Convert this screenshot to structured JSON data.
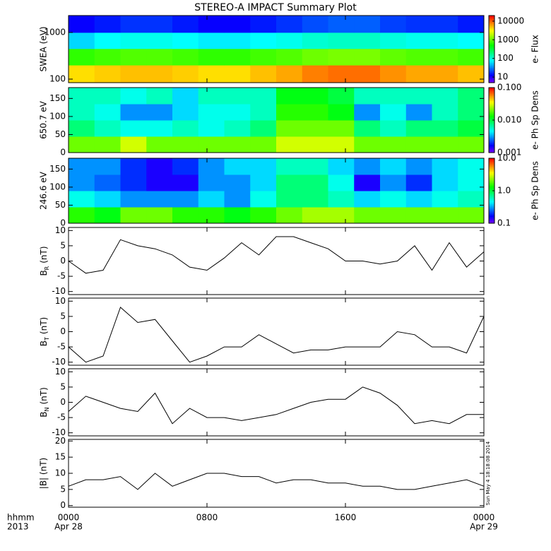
{
  "title": "STEREO-A IMPACT Summary Plot",
  "timestamp": "Sun May  4 18:18:08 2014",
  "x_axis": {
    "xlim": [
      0,
      24
    ],
    "xticks": [
      {
        "value": 0,
        "label": "0000"
      },
      {
        "value": 8,
        "label": "0800"
      },
      {
        "value": 16,
        "label": "1600"
      },
      {
        "value": 24,
        "label": "0000"
      }
    ],
    "date_labels": [
      {
        "value": 0,
        "label": "Apr 28"
      },
      {
        "value": 24,
        "label": "Apr 29"
      }
    ],
    "unit_label": "hhmm",
    "year_label": "2013"
  },
  "chart_data": [
    {
      "type": "heatmap",
      "ylabel": "SWEA (eV)",
      "ylog": true,
      "ylim": [
        84,
        2300
      ],
      "yticks": [
        100,
        1000
      ],
      "x": [
        0,
        1.5,
        3,
        4.5,
        6,
        7.5,
        9,
        10.5,
        12,
        13.5,
        15,
        16.5,
        18,
        19.5,
        21,
        22.5
      ],
      "y_edges": [
        84,
        200,
        450,
        1000,
        2300
      ],
      "values": [
        [
          4000,
          4500,
          5000,
          5000,
          4500,
          4000,
          4000,
          5000,
          6000,
          8000,
          9000,
          9000,
          7000,
          6000,
          6000,
          5000
        ],
        [
          700,
          800,
          900,
          900,
          800,
          700,
          700,
          800,
          900,
          1100,
          1200,
          1200,
          1000,
          900,
          900,
          800
        ],
        [
          60,
          80,
          90,
          90,
          80,
          70,
          70,
          80,
          90,
          110,
          120,
          120,
          100,
          90,
          90,
          80
        ],
        [
          12,
          15,
          18,
          18,
          15,
          12,
          12,
          15,
          18,
          22,
          25,
          25,
          20,
          18,
          18,
          15
        ]
      ],
      "colorbar": {
        "label": "e- Flux",
        "log": true,
        "lim": [
          5,
          20000
        ],
        "ticks": [
          10,
          100,
          1000,
          10000
        ]
      }
    },
    {
      "type": "heatmap",
      "ylabel": "650.7 eV",
      "ylog": false,
      "ylim": [
        0,
        180
      ],
      "yticks": [
        0,
        50,
        100,
        150
      ],
      "x": [
        0,
        1.5,
        3,
        4.5,
        6,
        7.5,
        9,
        10.5,
        12,
        13.5,
        15,
        16.5,
        18,
        19.5,
        21,
        22.5
      ],
      "y_edges": [
        0,
        45,
        90,
        135,
        180
      ],
      "values": [
        [
          0.02,
          0.02,
          0.03,
          0.02,
          0.02,
          0.02,
          0.02,
          0.02,
          0.03,
          0.03,
          0.03,
          0.02,
          0.02,
          0.02,
          0.02,
          0.02
        ],
        [
          0.008,
          0.006,
          0.005,
          0.005,
          0.006,
          0.005,
          0.006,
          0.008,
          0.02,
          0.02,
          0.02,
          0.008,
          0.006,
          0.008,
          0.008,
          0.01
        ],
        [
          0.006,
          0.005,
          0.003,
          0.003,
          0.004,
          0.005,
          0.005,
          0.006,
          0.015,
          0.015,
          0.012,
          0.003,
          0.005,
          0.003,
          0.006,
          0.008
        ],
        [
          0.006,
          0.006,
          0.005,
          0.006,
          0.004,
          0.006,
          0.006,
          0.006,
          0.012,
          0.012,
          0.01,
          0.006,
          0.006,
          0.006,
          0.006,
          0.008
        ]
      ],
      "colorbar": {
        "label": "e- Ph Sp Dens",
        "log": true,
        "lim": [
          0.001,
          0.1
        ],
        "ticks": [
          0.001,
          {
            "value": 0.01,
            "label": "0.010"
          },
          {
            "value": 0.1,
            "label": "0.100"
          }
        ]
      }
    },
    {
      "type": "heatmap",
      "ylabel": "246.6 eV",
      "ylog": false,
      "ylim": [
        0,
        180
      ],
      "yticks": [
        0,
        50,
        100,
        150
      ],
      "x": [
        0,
        1.5,
        3,
        4.5,
        6,
        7.5,
        9,
        10.5,
        12,
        13.5,
        15,
        16.5,
        18,
        19.5,
        21,
        22.5
      ],
      "y_edges": [
        0,
        45,
        90,
        135,
        180
      ],
      "values": [
        [
          1.5,
          1.2,
          2,
          2,
          1.5,
          1.5,
          1.2,
          1.5,
          2,
          2.5,
          2.5,
          2,
          2,
          2,
          2,
          2
        ],
        [
          0.5,
          0.4,
          0.3,
          0.3,
          0.3,
          0.4,
          0.3,
          0.5,
          0.8,
          0.8,
          0.6,
          0.4,
          0.5,
          0.4,
          0.5,
          0.6
        ],
        [
          0.3,
          0.25,
          0.2,
          0.15,
          0.15,
          0.3,
          0.3,
          0.4,
          0.8,
          0.8,
          0.5,
          0.15,
          0.3,
          0.2,
          0.4,
          0.5
        ],
        [
          0.3,
          0.3,
          0.2,
          0.15,
          0.2,
          0.3,
          0.4,
          0.4,
          0.6,
          0.6,
          0.4,
          0.3,
          0.4,
          0.3,
          0.4,
          0.5
        ]
      ],
      "colorbar": {
        "label": "e- Ph Sp Dens",
        "log": true,
        "lim": [
          0.1,
          10
        ],
        "ticks": [
          0.1,
          {
            "value": 1,
            "label": "1.0"
          },
          {
            "value": 10,
            "label": "10.0"
          }
        ]
      }
    },
    {
      "type": "line",
      "ylabel": {
        "symbol": "B",
        "subscript": "R",
        "unit": "(nT)"
      },
      "ylim": [
        -11,
        11
      ],
      "yticks": [
        -10,
        -5,
        0,
        5,
        10
      ],
      "color": "#000000",
      "x": [
        0,
        1,
        2,
        3,
        4,
        5,
        6,
        7,
        8,
        9,
        10,
        11,
        12,
        13,
        14,
        15,
        16,
        17,
        18,
        19,
        20,
        21,
        22,
        23,
        24
      ],
      "values": [
        0,
        -4,
        -3,
        7,
        5,
        4,
        2,
        -2,
        -3,
        1,
        6,
        2,
        8,
        8,
        6,
        4,
        0,
        0,
        -1,
        0,
        5,
        -3,
        6,
        -2,
        3
      ]
    },
    {
      "type": "line",
      "ylabel": {
        "symbol": "B",
        "subscript": "T",
        "unit": "(nT)"
      },
      "ylim": [
        -11,
        11
      ],
      "yticks": [
        -10,
        -5,
        0,
        5,
        10
      ],
      "color": "#000000",
      "x": [
        0,
        1,
        2,
        3,
        4,
        5,
        6,
        7,
        8,
        9,
        10,
        11,
        12,
        13,
        14,
        15,
        16,
        17,
        18,
        19,
        20,
        21,
        22,
        23,
        24
      ],
      "values": [
        -5,
        -10,
        -8,
        8,
        3,
        4,
        -3,
        -10,
        -8,
        -5,
        -5,
        -1,
        -4,
        -7,
        -6,
        -6,
        -5,
        -5,
        -5,
        0,
        -1,
        -5,
        -5,
        -7,
        5
      ]
    },
    {
      "type": "line",
      "ylabel": {
        "symbol": "B",
        "subscript": "N",
        "unit": "(nT)"
      },
      "ylim": [
        -11,
        11
      ],
      "yticks": [
        -10,
        -5,
        0,
        5,
        10
      ],
      "color": "#000000",
      "x": [
        0,
        1,
        2,
        3,
        4,
        5,
        6,
        7,
        8,
        9,
        10,
        11,
        12,
        13,
        14,
        15,
        16,
        17,
        18,
        19,
        20,
        21,
        22,
        23,
        24
      ],
      "values": [
        -3,
        2,
        0,
        -2,
        -3,
        3,
        -7,
        -2,
        -5,
        -5,
        -6,
        -5,
        -4,
        -2,
        0,
        1,
        1,
        5,
        3,
        -1,
        -7,
        -6,
        -7,
        -4,
        -4
      ]
    },
    {
      "type": "line",
      "ylabel": "|B| (nT)",
      "ylim": [
        -0.5,
        20.5
      ],
      "yticks": [
        0,
        5,
        10,
        15,
        20
      ],
      "color": "#000000",
      "x": [
        0,
        1,
        2,
        3,
        4,
        5,
        6,
        7,
        8,
        9,
        10,
        11,
        12,
        13,
        14,
        15,
        16,
        17,
        18,
        19,
        20,
        21,
        22,
        23,
        24
      ],
      "values": [
        6,
        8,
        8,
        9,
        5,
        10,
        6,
        8,
        10,
        10,
        9,
        9,
        7,
        8,
        8,
        7,
        7,
        6,
        6,
        5,
        5,
        6,
        7,
        8,
        6
      ]
    }
  ]
}
